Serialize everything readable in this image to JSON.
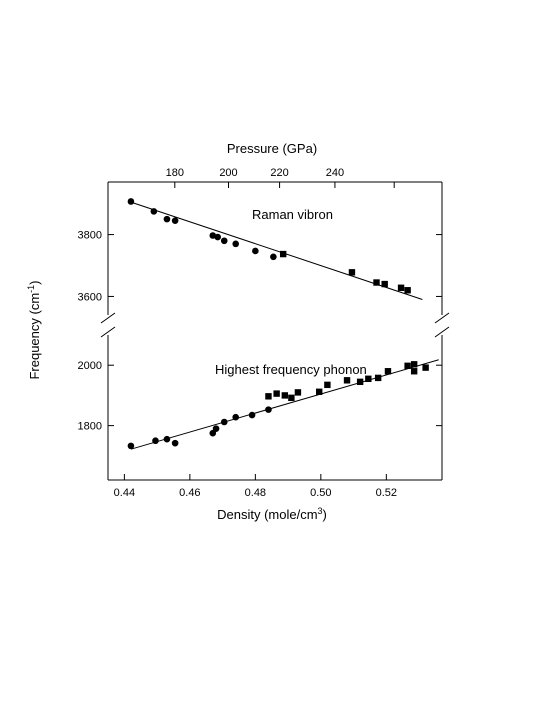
{
  "chart_data": {
    "type": "scatter",
    "x_axis": {
      "label": "Density (mole/cm",
      "label_sup": "3",
      "label_end": ")",
      "range": [
        0.435,
        0.537
      ],
      "ticks": [
        0.44,
        0.46,
        0.48,
        0.5,
        0.52
      ],
      "tick_labels": [
        "0.44",
        "0.46",
        "0.48",
        "0.50",
        "0.52"
      ]
    },
    "top_axis": {
      "label": "Pressure (GPa)",
      "ticks_density": [
        0.4554,
        0.4718,
        0.4874,
        0.5043,
        0.5224
      ],
      "tick_labels": [
        "180",
        "200",
        "220",
        "240"
      ],
      "labeled_density": [
        0.4554,
        0.4718,
        0.4874,
        0.5043
      ]
    },
    "y_label": "Frequency (cm",
    "y_label_sup": "-1",
    "y_label_end": ")",
    "panels": [
      {
        "annotation": "Raman vibron",
        "ylim": [
          3540,
          3970
        ],
        "ticks": [
          3600,
          3800
        ],
        "tick_labels": [
          "3600",
          "3800"
        ],
        "fit": [
          [
            0.442,
            3905
          ],
          [
            0.531,
            3590
          ]
        ],
        "series": [
          {
            "marker": "circle",
            "points": [
              [
                0.442,
                3907
              ],
              [
                0.449,
                3875
              ],
              [
                0.453,
                3850
              ],
              [
                0.4555,
                3845
              ],
              [
                0.467,
                3797
              ],
              [
                0.4685,
                3792
              ],
              [
                0.4705,
                3780
              ],
              [
                0.474,
                3770
              ],
              [
                0.48,
                3747
              ],
              [
                0.4855,
                3728
              ]
            ]
          },
          {
            "marker": "square",
            "points": [
              [
                0.4885,
                3737
              ],
              [
                0.5095,
                3678
              ],
              [
                0.517,
                3645
              ],
              [
                0.5195,
                3640
              ],
              [
                0.5245,
                3628
              ],
              [
                0.5265,
                3620
              ]
            ]
          }
        ]
      },
      {
        "annotation": "Highest frequency phonon",
        "ylim": [
          1620,
          2100
        ],
        "ticks": [
          1800,
          2000
        ],
        "tick_labels": [
          "1800",
          "2000"
        ],
        "fit": [
          [
            0.442,
            1722
          ],
          [
            0.536,
            2018
          ]
        ],
        "series": [
          {
            "marker": "circle",
            "points": [
              [
                0.442,
                1733
              ],
              [
                0.4495,
                1750
              ],
              [
                0.453,
                1755
              ],
              [
                0.4555,
                1742
              ],
              [
                0.467,
                1775
              ],
              [
                0.468,
                1790
              ],
              [
                0.4705,
                1812
              ],
              [
                0.474,
                1828
              ],
              [
                0.479,
                1835
              ],
              [
                0.484,
                1853
              ]
            ]
          },
          {
            "marker": "square",
            "points": [
              [
                0.484,
                1897
              ],
              [
                0.4865,
                1906
              ],
              [
                0.489,
                1900
              ],
              [
                0.491,
                1892
              ],
              [
                0.493,
                1910
              ],
              [
                0.4995,
                1912
              ],
              [
                0.502,
                1935
              ],
              [
                0.508,
                1950
              ],
              [
                0.512,
                1945
              ],
              [
                0.5145,
                1955
              ],
              [
                0.5175,
                1958
              ],
              [
                0.5205,
                1980
              ],
              [
                0.5265,
                1998
              ],
              [
                0.5285,
                2003
              ],
              [
                0.5285,
                1980
              ],
              [
                0.532,
                1992
              ]
            ]
          }
        ]
      }
    ]
  }
}
